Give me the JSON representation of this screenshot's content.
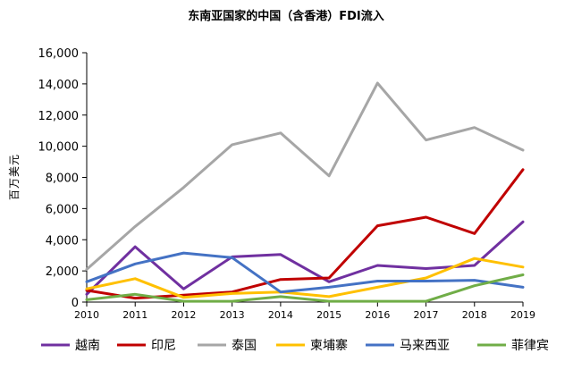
{
  "chart_data": {
    "type": "line",
    "title": "东南亚国家的中国（含香港）FDI流入",
    "ylabel": "百万美元",
    "xlabel": "",
    "x": [
      "2010",
      "2011",
      "2012",
      "2013",
      "2014",
      "2015",
      "2016",
      "2017",
      "2018",
      "2019"
    ],
    "ylim": [
      0,
      16000
    ],
    "yticks": [
      0,
      2000,
      4000,
      6000,
      8000,
      10000,
      12000,
      14000,
      16000
    ],
    "ytick_labels": [
      "0",
      "2,000",
      "4,000",
      "6,000",
      "8,000",
      "10,000",
      "12,000",
      "14,000",
      "16,000"
    ],
    "grid": false,
    "legend_position": "bottom",
    "series": [
      {
        "name": "越南",
        "color": "#7030a0",
        "values": [
          500,
          3550,
          850,
          2900,
          3050,
          1300,
          2350,
          2150,
          2350,
          5150
        ]
      },
      {
        "name": "印尼",
        "color": "#c00000",
        "values": [
          750,
          250,
          450,
          650,
          1450,
          1550,
          4900,
          5450,
          4400,
          8500
        ]
      },
      {
        "name": "泰国",
        "color": "#a6a6a6",
        "values": [
          2100,
          4850,
          7350,
          10100,
          10850,
          8100,
          14050,
          10400,
          11200,
          9750
        ]
      },
      {
        "name": "柬埔寨",
        "color": "#ffc000",
        "values": [
          850,
          1500,
          300,
          550,
          650,
          350,
          950,
          1550,
          2800,
          2250
        ]
      },
      {
        "name": "马来西亚",
        "color": "#4472c4",
        "values": [
          1300,
          2450,
          3150,
          2850,
          650,
          950,
          1350,
          1350,
          1400,
          950
        ]
      },
      {
        "name": "菲律宾",
        "color": "#70ad47",
        "values": [
          150,
          500,
          50,
          50,
          350,
          50,
          50,
          50,
          1050,
          1750
        ]
      }
    ]
  }
}
